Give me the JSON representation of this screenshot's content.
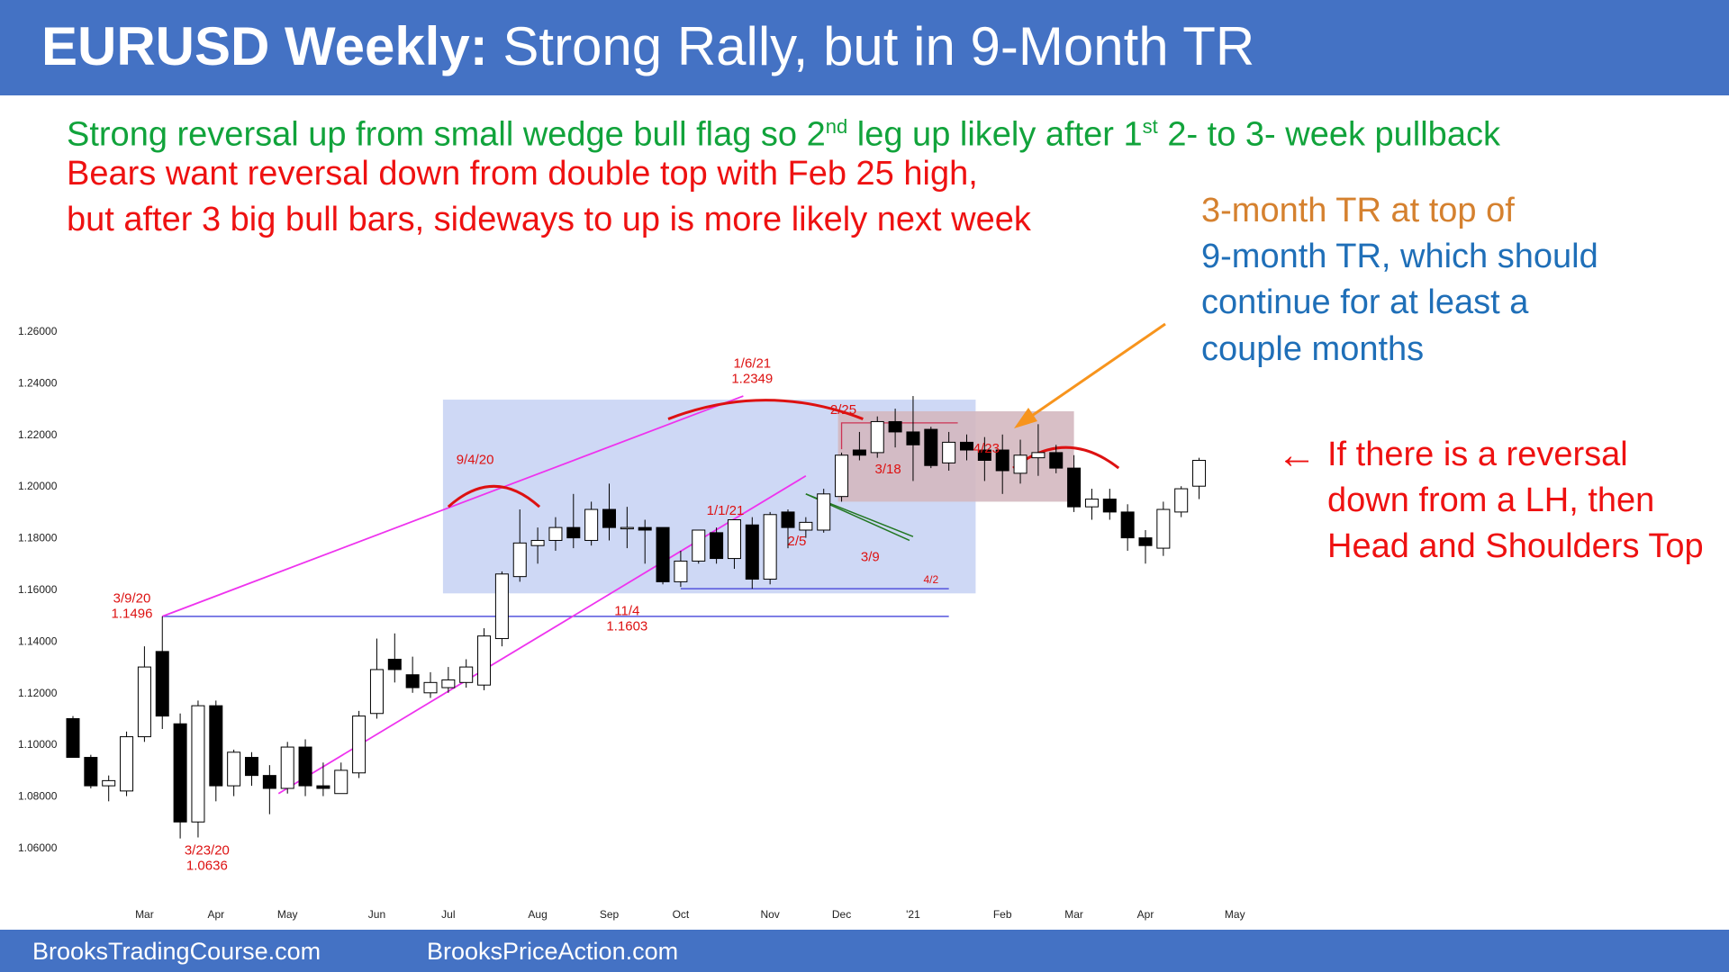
{
  "header": {
    "title_bold": "EURUSD Weekly:",
    "title_rest": " Strong Rally, but in 9-Month TR"
  },
  "notes": {
    "line1_a": "Strong reversal up from small wedge bull flag so 2",
    "line1_sup1": "nd",
    "line1_b": " leg up likely after 1",
    "line1_sup2": "st",
    "line1_c": " 2- to 3- week pullback",
    "line2": "Bears want reversal down from double top with Feb 25 high,",
    "line3": "but after 3 big bull bars, sideways to up is more likely next week",
    "tr_line1": "3-month TR at top of",
    "tr_line2": "9-month TR, which should",
    "tr_line3": "continue for at least a",
    "tr_line4": "couple months",
    "hs_line1": "If there is a reversal",
    "hs_line2": "down from a LH, then",
    "hs_line3": "Head and Shoulders Top",
    "hs_arrow": "←"
  },
  "footer": {
    "left": "BrooksTradingCourse.com",
    "right": "BrooksPriceAction.com"
  },
  "colors": {
    "header_bg": "#4472c4",
    "bull_candle": "#ffffff",
    "bear_candle": "#000000",
    "range_box": "#c5d1f3",
    "inner_box": "#d4b8c0",
    "wedge": "#ee33ee",
    "support": "#5555dd",
    "arc": "#dd1111",
    "arrow": "#f7941d",
    "green_text": "#11a33b",
    "red_text": "#ee1111",
    "blue_text": "#1f6fb8",
    "orange_text": "#d5812f"
  },
  "chart_data": {
    "type": "candlestick",
    "title": "",
    "xlabel": "",
    "ylabel": "",
    "ylim": [
      1.055,
      1.27
    ],
    "yticks": [
      "1.26000",
      "1.24000",
      "1.22000",
      "1.20000",
      "1.18000",
      "1.16000",
      "1.14000",
      "1.12000",
      "1.10000",
      "1.08000",
      "1.06000"
    ],
    "ytick_values": [
      1.26,
      1.24,
      1.22,
      1.2,
      1.18,
      1.16,
      1.14,
      1.12,
      1.1,
      1.08,
      1.06
    ],
    "month_labels": [
      "Mar",
      "Apr",
      "May",
      "Jun",
      "Jul",
      "Aug",
      "Sep",
      "Oct",
      "Nov",
      "Dec",
      "'21",
      "Feb",
      "Mar",
      "Apr",
      "May"
    ],
    "month_label_weeks": [
      4,
      8,
      12,
      17,
      21,
      26,
      30,
      34,
      39,
      43,
      47,
      52,
      56,
      60,
      65
    ],
    "candles": [
      {
        "o": 1.11,
        "h": 1.111,
        "l": 1.095,
        "c": 1.095
      },
      {
        "o": 1.095,
        "h": 1.096,
        "l": 1.083,
        "c": 1.084
      },
      {
        "o": 1.084,
        "h": 1.088,
        "l": 1.078,
        "c": 1.086
      },
      {
        "o": 1.082,
        "h": 1.105,
        "l": 1.08,
        "c": 1.103
      },
      {
        "o": 1.103,
        "h": 1.138,
        "l": 1.101,
        "c": 1.13
      },
      {
        "o": 1.136,
        "h": 1.1496,
        "l": 1.106,
        "c": 1.111
      },
      {
        "o": 1.108,
        "h": 1.112,
        "l": 1.0636,
        "c": 1.07
      },
      {
        "o": 1.07,
        "h": 1.117,
        "l": 1.064,
        "c": 1.115
      },
      {
        "o": 1.115,
        "h": 1.117,
        "l": 1.078,
        "c": 1.084
      },
      {
        "o": 1.084,
        "h": 1.098,
        "l": 1.08,
        "c": 1.097
      },
      {
        "o": 1.095,
        "h": 1.097,
        "l": 1.084,
        "c": 1.088
      },
      {
        "o": 1.088,
        "h": 1.092,
        "l": 1.073,
        "c": 1.083
      },
      {
        "o": 1.083,
        "h": 1.101,
        "l": 1.081,
        "c": 1.099
      },
      {
        "o": 1.099,
        "h": 1.102,
        "l": 1.08,
        "c": 1.084
      },
      {
        "o": 1.084,
        "h": 1.093,
        "l": 1.08,
        "c": 1.083
      },
      {
        "o": 1.081,
        "h": 1.093,
        "l": 1.081,
        "c": 1.09
      },
      {
        "o": 1.089,
        "h": 1.113,
        "l": 1.087,
        "c": 1.111
      },
      {
        "o": 1.112,
        "h": 1.141,
        "l": 1.11,
        "c": 1.129
      },
      {
        "o": 1.133,
        "h": 1.143,
        "l": 1.124,
        "c": 1.129
      },
      {
        "o": 1.127,
        "h": 1.134,
        "l": 1.12,
        "c": 1.122
      },
      {
        "o": 1.12,
        "h": 1.128,
        "l": 1.118,
        "c": 1.124
      },
      {
        "o": 1.122,
        "h": 1.13,
        "l": 1.12,
        "c": 1.125
      },
      {
        "o": 1.124,
        "h": 1.133,
        "l": 1.122,
        "c": 1.13
      },
      {
        "o": 1.123,
        "h": 1.145,
        "l": 1.121,
        "c": 1.142
      },
      {
        "o": 1.141,
        "h": 1.167,
        "l": 1.138,
        "c": 1.166
      },
      {
        "o": 1.165,
        "h": 1.191,
        "l": 1.163,
        "c": 1.178
      },
      {
        "o": 1.177,
        "h": 1.184,
        "l": 1.17,
        "c": 1.179
      },
      {
        "o": 1.179,
        "h": 1.188,
        "l": 1.175,
        "c": 1.184
      },
      {
        "o": 1.184,
        "h": 1.197,
        "l": 1.176,
        "c": 1.18
      },
      {
        "o": 1.179,
        "h": 1.194,
        "l": 1.177,
        "c": 1.191
      },
      {
        "o": 1.191,
        "h": 1.201,
        "l": 1.179,
        "c": 1.184
      },
      {
        "o": 1.184,
        "h": 1.192,
        "l": 1.176,
        "c": 1.184
      },
      {
        "o": 1.184,
        "h": 1.187,
        "l": 1.17,
        "c": 1.183
      },
      {
        "o": 1.184,
        "h": 1.184,
        "l": 1.162,
        "c": 1.163
      },
      {
        "o": 1.163,
        "h": 1.175,
        "l": 1.161,
        "c": 1.171
      },
      {
        "o": 1.171,
        "h": 1.182,
        "l": 1.17,
        "c": 1.183
      },
      {
        "o": 1.182,
        "h": 1.184,
        "l": 1.17,
        "c": 1.172
      },
      {
        "o": 1.172,
        "h": 1.187,
        "l": 1.168,
        "c": 1.187
      },
      {
        "o": 1.185,
        "h": 1.188,
        "l": 1.1603,
        "c": 1.164
      },
      {
        "o": 1.164,
        "h": 1.19,
        "l": 1.162,
        "c": 1.189
      },
      {
        "o": 1.19,
        "h": 1.191,
        "l": 1.176,
        "c": 1.184
      },
      {
        "o": 1.183,
        "h": 1.188,
        "l": 1.18,
        "c": 1.186
      },
      {
        "o": 1.183,
        "h": 1.199,
        "l": 1.182,
        "c": 1.197
      },
      {
        "o": 1.196,
        "h": 1.213,
        "l": 1.194,
        "c": 1.212
      },
      {
        "o": 1.214,
        "h": 1.221,
        "l": 1.21,
        "c": 1.212
      },
      {
        "o": 1.213,
        "h": 1.227,
        "l": 1.211,
        "c": 1.225
      },
      {
        "o": 1.225,
        "h": 1.23,
        "l": 1.215,
        "c": 1.221
      },
      {
        "o": 1.221,
        "h": 1.2349,
        "l": 1.202,
        "c": 1.216
      },
      {
        "o": 1.222,
        "h": 1.223,
        "l": 1.207,
        "c": 1.208
      },
      {
        "o": 1.209,
        "h": 1.221,
        "l": 1.206,
        "c": 1.217
      },
      {
        "o": 1.217,
        "h": 1.22,
        "l": 1.21,
        "c": 1.214
      },
      {
        "o": 1.214,
        "h": 1.219,
        "l": 1.202,
        "c": 1.21
      },
      {
        "o": 1.214,
        "h": 1.22,
        "l": 1.197,
        "c": 1.206
      },
      {
        "o": 1.205,
        "h": 1.218,
        "l": 1.201,
        "c": 1.212
      },
      {
        "o": 1.211,
        "h": 1.224,
        "l": 1.204,
        "c": 1.213
      },
      {
        "o": 1.213,
        "h": 1.216,
        "l": 1.205,
        "c": 1.207
      },
      {
        "o": 1.207,
        "h": 1.212,
        "l": 1.19,
        "c": 1.192
      },
      {
        "o": 1.192,
        "h": 1.199,
        "l": 1.187,
        "c": 1.195
      },
      {
        "o": 1.195,
        "h": 1.199,
        "l": 1.187,
        "c": 1.19
      },
      {
        "o": 1.19,
        "h": 1.193,
        "l": 1.175,
        "c": 1.18
      },
      {
        "o": 1.18,
        "h": 1.183,
        "l": 1.17,
        "c": 1.177
      },
      {
        "o": 1.176,
        "h": 1.194,
        "l": 1.173,
        "c": 1.191
      },
      {
        "o": 1.19,
        "h": 1.2,
        "l": 1.188,
        "c": 1.199
      },
      {
        "o": 1.2,
        "h": 1.211,
        "l": 1.195,
        "c": 1.21
      }
    ],
    "annotations": [
      {
        "label": "3/9/20",
        "value": "1.1496"
      },
      {
        "label": "3/23/20",
        "value": "1.0636"
      },
      {
        "label": "9/4/20",
        "value": ""
      },
      {
        "label": "11/4",
        "value": "1.1603"
      },
      {
        "label": "1/6/21",
        "value": "1.2349"
      },
      {
        "label": "1/1/21",
        "value": ""
      },
      {
        "label": "2/5",
        "value": ""
      },
      {
        "label": "2/25",
        "value": ""
      },
      {
        "label": "3/18",
        "value": ""
      },
      {
        "label": "3/9",
        "value": ""
      },
      {
        "label": "4/2",
        "value": ""
      },
      {
        "label": "4/23",
        "value": ""
      }
    ]
  }
}
